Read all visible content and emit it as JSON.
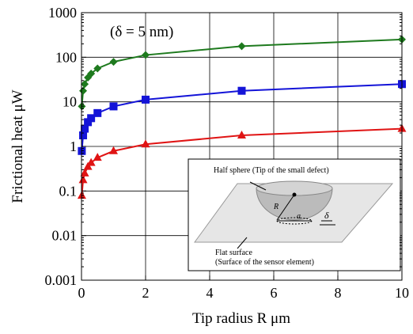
{
  "chart_data": {
    "type": "line",
    "x_label": "Tip radius R μm",
    "y_label": "Frictional heat μW",
    "annotation": "(δ = 5 nm)",
    "log_y": true,
    "grid": true,
    "xlim": [
      0,
      10
    ],
    "xticks": [
      0,
      2,
      4,
      6,
      8,
      10
    ],
    "ylim": [
      0.001,
      1000
    ],
    "yticks": [
      0.001,
      0.01,
      0.1,
      1,
      10,
      100,
      1000
    ],
    "x": [
      0.01,
      0.05,
      0.1,
      0.2,
      0.3,
      0.5,
      1,
      2,
      5,
      10
    ],
    "series": [
      {
        "color": "#1e7a1e",
        "marker": "diamond",
        "values": [
          7.9,
          17.7,
          25,
          35,
          43,
          56,
          79,
          112,
          177,
          250
        ]
      },
      {
        "color": "#1414d8",
        "marker": "square",
        "values": [
          0.79,
          1.77,
          2.5,
          3.5,
          4.3,
          5.6,
          7.9,
          11.2,
          17.7,
          25
        ]
      },
      {
        "color": "#e01414",
        "marker": "triangle",
        "values": [
          0.079,
          0.177,
          0.25,
          0.35,
          0.43,
          0.56,
          0.79,
          1.12,
          1.77,
          2.5
        ]
      }
    ],
    "inset": {
      "labels": [
        "Half sphere (Tip of the small defect)",
        "R",
        "a",
        "δ",
        "Flat surface",
        "(Surface of the sensor element)"
      ]
    }
  }
}
